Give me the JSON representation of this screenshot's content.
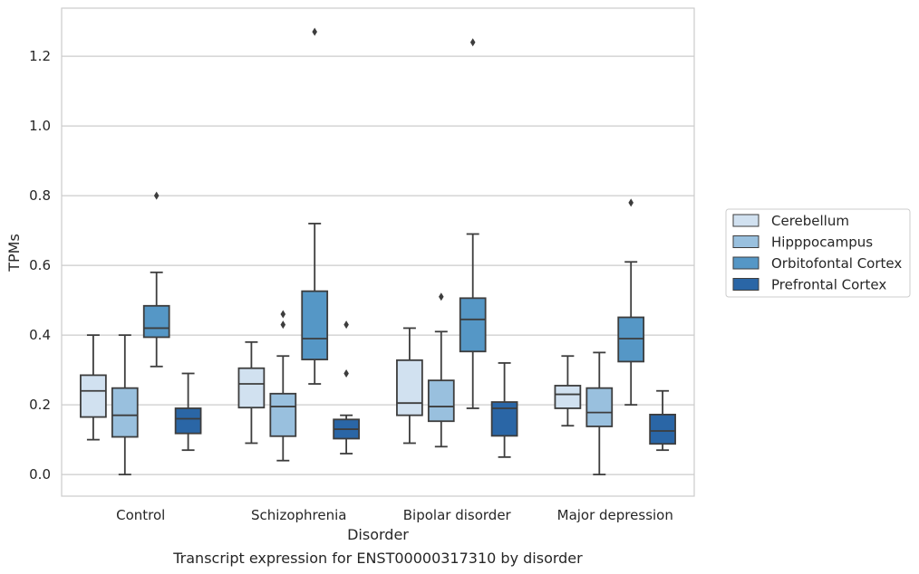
{
  "chart_data": {
    "type": "boxplot",
    "caption": "Transcript expression for ENST00000317310 by disorder",
    "xlabel": "Disorder",
    "ylabel": "TPMs",
    "ylim": [
      -0.062,
      1.338
    ],
    "yticks": [
      0.0,
      0.2,
      0.4,
      0.6,
      0.8,
      1.0,
      1.2
    ],
    "ytick_labels": [
      "0.0",
      "0.2",
      "0.4",
      "0.6",
      "0.8",
      "1.0",
      "1.2"
    ],
    "grid": "horizontal",
    "legend_position": "right",
    "categories": [
      "Control",
      "Schizophrenia",
      "Bipolar disorder",
      "Major depression"
    ],
    "series": [
      {
        "name": "Cerebellum",
        "color": "#d1e1f0",
        "boxes": [
          {
            "whislo": 0.1,
            "q1": 0.165,
            "med": 0.24,
            "q3": 0.285,
            "whishi": 0.4,
            "fliers": []
          },
          {
            "whislo": 0.09,
            "q1": 0.192,
            "med": 0.26,
            "q3": 0.305,
            "whishi": 0.38,
            "fliers": []
          },
          {
            "whislo": 0.09,
            "q1": 0.17,
            "med": 0.205,
            "q3": 0.328,
            "whishi": 0.42,
            "fliers": []
          },
          {
            "whislo": 0.14,
            "q1": 0.19,
            "med": 0.23,
            "q3": 0.255,
            "whishi": 0.34,
            "fliers": []
          }
        ]
      },
      {
        "name": "Hipppocampus",
        "color": "#99c0de",
        "boxes": [
          {
            "whislo": 0.0,
            "q1": 0.108,
            "med": 0.17,
            "q3": 0.248,
            "whishi": 0.4,
            "fliers": []
          },
          {
            "whislo": 0.04,
            "q1": 0.11,
            "med": 0.195,
            "q3": 0.232,
            "whishi": 0.34,
            "fliers": [
              0.43,
              0.46
            ]
          },
          {
            "whislo": 0.08,
            "q1": 0.153,
            "med": 0.195,
            "q3": 0.27,
            "whishi": 0.41,
            "fliers": [
              0.51
            ]
          },
          {
            "whislo": 0.0,
            "q1": 0.138,
            "med": 0.178,
            "q3": 0.248,
            "whishi": 0.35,
            "fliers": []
          }
        ]
      },
      {
        "name": "Orbitofontal Cortex",
        "color": "#5597c6",
        "boxes": [
          {
            "whislo": 0.31,
            "q1": 0.394,
            "med": 0.42,
            "q3": 0.484,
            "whishi": 0.58,
            "fliers": [
              0.8
            ]
          },
          {
            "whislo": 0.26,
            "q1": 0.33,
            "med": 0.39,
            "q3": 0.526,
            "whishi": 0.72,
            "fliers": [
              1.27
            ]
          },
          {
            "whislo": 0.19,
            "q1": 0.353,
            "med": 0.445,
            "q3": 0.506,
            "whishi": 0.69,
            "fliers": [
              1.24
            ]
          },
          {
            "whislo": 0.2,
            "q1": 0.324,
            "med": 0.39,
            "q3": 0.451,
            "whishi": 0.61,
            "fliers": [
              0.78
            ]
          }
        ]
      },
      {
        "name": "Prefrontal Cortex",
        "color": "#2a66a6",
        "boxes": [
          {
            "whislo": 0.07,
            "q1": 0.118,
            "med": 0.16,
            "q3": 0.19,
            "whishi": 0.29,
            "fliers": []
          },
          {
            "whislo": 0.06,
            "q1": 0.103,
            "med": 0.13,
            "q3": 0.158,
            "whishi": 0.17,
            "fliers": [
              0.29,
              0.43
            ]
          },
          {
            "whislo": 0.05,
            "q1": 0.111,
            "med": 0.19,
            "q3": 0.208,
            "whishi": 0.32,
            "fliers": []
          },
          {
            "whislo": 0.07,
            "q1": 0.088,
            "med": 0.125,
            "q3": 0.172,
            "whishi": 0.24,
            "fliers": []
          }
        ]
      }
    ]
  }
}
